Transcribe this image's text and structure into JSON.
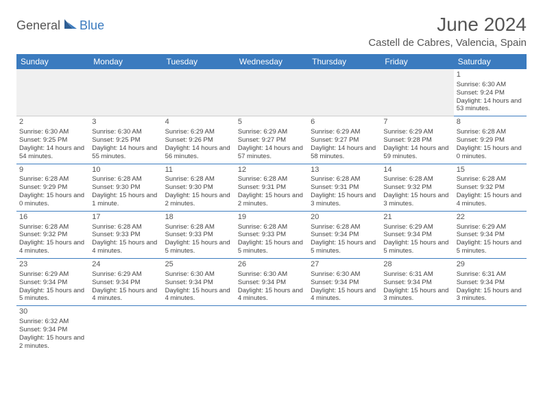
{
  "logo": {
    "text1": "General",
    "text2": "Blue"
  },
  "title": "June 2024",
  "location": "Castell de Cabres, Valencia, Spain",
  "colors": {
    "header_bg": "#3b7bbf",
    "header_text": "#ffffff",
    "border": "#3b7bbf",
    "text": "#444444",
    "title": "#555555",
    "blank_bg": "#f0f0f0"
  },
  "weekdays": [
    "Sunday",
    "Monday",
    "Tuesday",
    "Wednesday",
    "Thursday",
    "Friday",
    "Saturday"
  ],
  "weeks": [
    [
      null,
      null,
      null,
      null,
      null,
      null,
      {
        "d": "1",
        "sr": "6:30 AM",
        "ss": "9:24 PM",
        "dl": "14 hours and 53 minutes."
      }
    ],
    [
      {
        "d": "2",
        "sr": "6:30 AM",
        "ss": "9:25 PM",
        "dl": "14 hours and 54 minutes."
      },
      {
        "d": "3",
        "sr": "6:30 AM",
        "ss": "9:25 PM",
        "dl": "14 hours and 55 minutes."
      },
      {
        "d": "4",
        "sr": "6:29 AM",
        "ss": "9:26 PM",
        "dl": "14 hours and 56 minutes."
      },
      {
        "d": "5",
        "sr": "6:29 AM",
        "ss": "9:27 PM",
        "dl": "14 hours and 57 minutes."
      },
      {
        "d": "6",
        "sr": "6:29 AM",
        "ss": "9:27 PM",
        "dl": "14 hours and 58 minutes."
      },
      {
        "d": "7",
        "sr": "6:29 AM",
        "ss": "9:28 PM",
        "dl": "14 hours and 59 minutes."
      },
      {
        "d": "8",
        "sr": "6:28 AM",
        "ss": "9:29 PM",
        "dl": "15 hours and 0 minutes."
      }
    ],
    [
      {
        "d": "9",
        "sr": "6:28 AM",
        "ss": "9:29 PM",
        "dl": "15 hours and 0 minutes."
      },
      {
        "d": "10",
        "sr": "6:28 AM",
        "ss": "9:30 PM",
        "dl": "15 hours and 1 minute."
      },
      {
        "d": "11",
        "sr": "6:28 AM",
        "ss": "9:30 PM",
        "dl": "15 hours and 2 minutes."
      },
      {
        "d": "12",
        "sr": "6:28 AM",
        "ss": "9:31 PM",
        "dl": "15 hours and 2 minutes."
      },
      {
        "d": "13",
        "sr": "6:28 AM",
        "ss": "9:31 PM",
        "dl": "15 hours and 3 minutes."
      },
      {
        "d": "14",
        "sr": "6:28 AM",
        "ss": "9:32 PM",
        "dl": "15 hours and 3 minutes."
      },
      {
        "d": "15",
        "sr": "6:28 AM",
        "ss": "9:32 PM",
        "dl": "15 hours and 4 minutes."
      }
    ],
    [
      {
        "d": "16",
        "sr": "6:28 AM",
        "ss": "9:32 PM",
        "dl": "15 hours and 4 minutes."
      },
      {
        "d": "17",
        "sr": "6:28 AM",
        "ss": "9:33 PM",
        "dl": "15 hours and 4 minutes."
      },
      {
        "d": "18",
        "sr": "6:28 AM",
        "ss": "9:33 PM",
        "dl": "15 hours and 5 minutes."
      },
      {
        "d": "19",
        "sr": "6:28 AM",
        "ss": "9:33 PM",
        "dl": "15 hours and 5 minutes."
      },
      {
        "d": "20",
        "sr": "6:28 AM",
        "ss": "9:34 PM",
        "dl": "15 hours and 5 minutes."
      },
      {
        "d": "21",
        "sr": "6:29 AM",
        "ss": "9:34 PM",
        "dl": "15 hours and 5 minutes."
      },
      {
        "d": "22",
        "sr": "6:29 AM",
        "ss": "9:34 PM",
        "dl": "15 hours and 5 minutes."
      }
    ],
    [
      {
        "d": "23",
        "sr": "6:29 AM",
        "ss": "9:34 PM",
        "dl": "15 hours and 5 minutes."
      },
      {
        "d": "24",
        "sr": "6:29 AM",
        "ss": "9:34 PM",
        "dl": "15 hours and 4 minutes."
      },
      {
        "d": "25",
        "sr": "6:30 AM",
        "ss": "9:34 PM",
        "dl": "15 hours and 4 minutes."
      },
      {
        "d": "26",
        "sr": "6:30 AM",
        "ss": "9:34 PM",
        "dl": "15 hours and 4 minutes."
      },
      {
        "d": "27",
        "sr": "6:30 AM",
        "ss": "9:34 PM",
        "dl": "15 hours and 4 minutes."
      },
      {
        "d": "28",
        "sr": "6:31 AM",
        "ss": "9:34 PM",
        "dl": "15 hours and 3 minutes."
      },
      {
        "d": "29",
        "sr": "6:31 AM",
        "ss": "9:34 PM",
        "dl": "15 hours and 3 minutes."
      }
    ],
    [
      {
        "d": "30",
        "sr": "6:32 AM",
        "ss": "9:34 PM",
        "dl": "15 hours and 2 minutes."
      },
      null,
      null,
      null,
      null,
      null,
      null
    ]
  ],
  "labels": {
    "sunrise": "Sunrise: ",
    "sunset": "Sunset: ",
    "daylight": "Daylight: "
  }
}
